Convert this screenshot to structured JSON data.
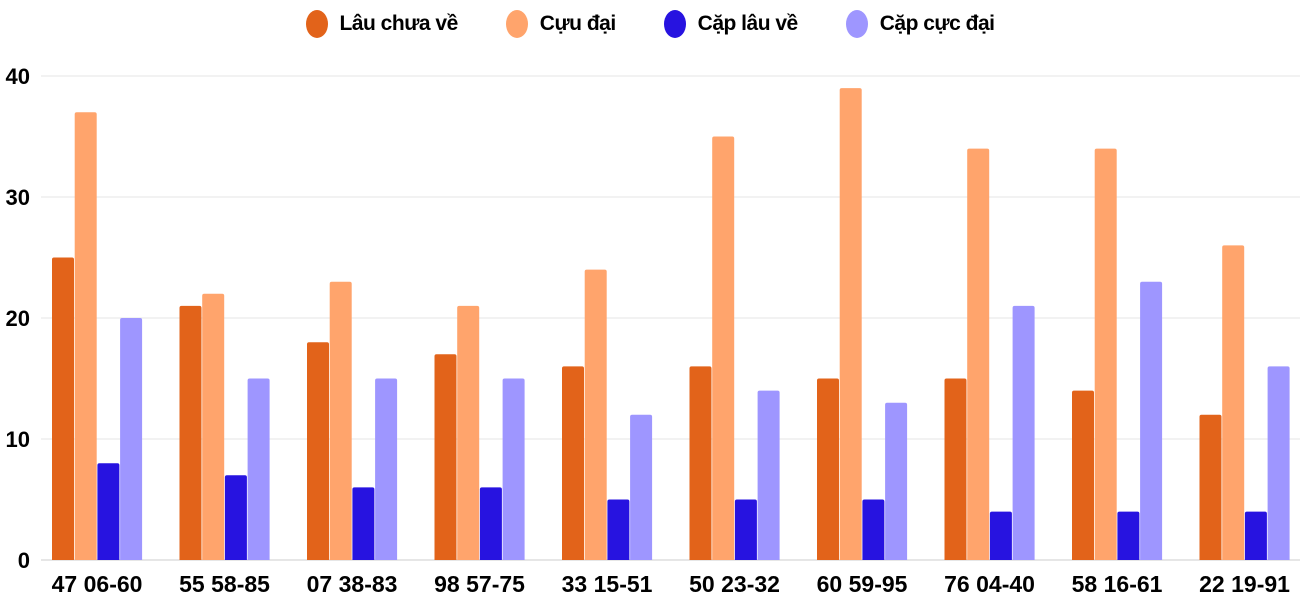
{
  "chart_data": {
    "type": "bar",
    "categories": [
      "47 06-60",
      "55 58-85",
      "07 38-83",
      "98 57-75",
      "33 15-51",
      "50 23-32",
      "60 59-95",
      "76 04-40",
      "58 16-61",
      "22 19-91"
    ],
    "series": [
      {
        "name": "Lâu chưa về",
        "color": "#E2631A",
        "values": [
          25,
          21,
          18,
          17,
          16,
          16,
          15,
          15,
          14,
          12
        ]
      },
      {
        "name": "Cựu đại",
        "color": "#FFA46C",
        "values": [
          37,
          22,
          23,
          21,
          24,
          35,
          39,
          34,
          34,
          26
        ]
      },
      {
        "name": "Cặp lâu về",
        "color": "#2713E0",
        "values": [
          8,
          7,
          6,
          6,
          5,
          5,
          5,
          4,
          4,
          4
        ]
      },
      {
        "name": "Cặp cực đại",
        "color": "#9E96FF",
        "values": [
          20,
          15,
          15,
          15,
          12,
          14,
          13,
          21,
          23,
          16
        ]
      }
    ],
    "yticks": [
      "0",
      "10",
      "20",
      "30",
      "40"
    ],
    "ylim": [
      0,
      40
    ],
    "grid": true,
    "legend": "top-center"
  }
}
